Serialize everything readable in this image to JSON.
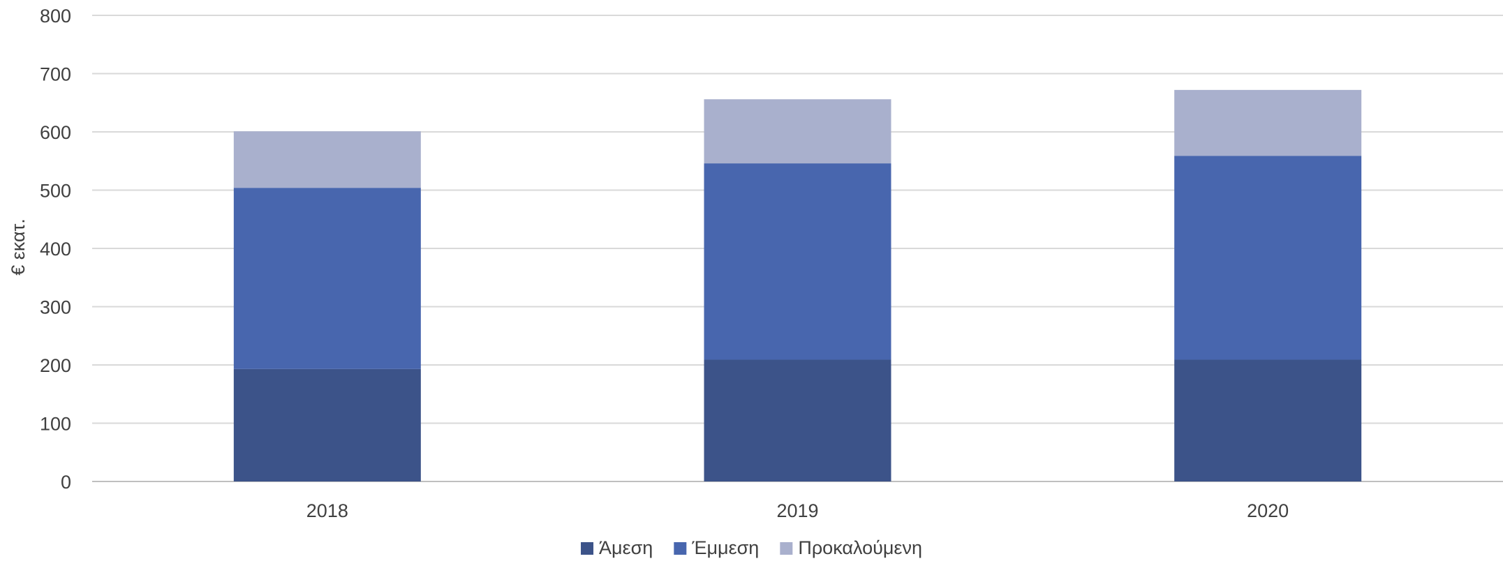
{
  "chart_data": {
    "type": "bar",
    "stacked": true,
    "categories": [
      "2018",
      "2019",
      "2020"
    ],
    "series": [
      {
        "name": "Άμεση",
        "color": "#3c5389",
        "values": [
          193,
          209,
          209
        ]
      },
      {
        "name": "Έμμεση",
        "color": "#4866ae",
        "values": [
          311,
          337,
          350
        ]
      },
      {
        "name": "Προκαλούμενη",
        "color": "#a9b0cd",
        "values": [
          97,
          110,
          113
        ]
      }
    ],
    "ylabel": "€ εκατ.",
    "xlabel": "",
    "title": "",
    "ylim": [
      0,
      800
    ],
    "yticks": [
      0,
      100,
      200,
      300,
      400,
      500,
      600,
      700,
      800
    ],
    "grid": true,
    "legend_position": "bottom"
  }
}
